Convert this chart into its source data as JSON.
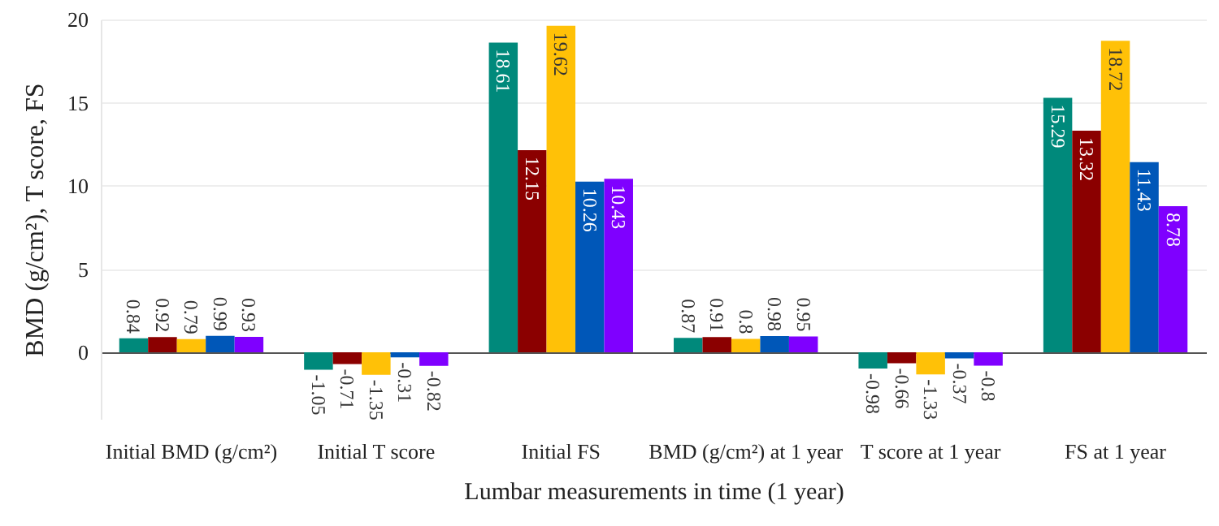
{
  "chart_data": {
    "type": "bar",
    "xlabel": "Lumbar measurements in time (1 year)",
    "ylabel": "BMD (g/cm²), T score, FS",
    "categories": [
      "Initial BMD (g/cm²)",
      "Initial T score",
      "Initial FS",
      "BMD (g/cm²) at 1 year",
      "T score at 1 year",
      "FS at 1 year"
    ],
    "series": [
      {
        "color": "#00897b",
        "values": [
          0.84,
          -1.05,
          18.61,
          0.87,
          -0.98,
          15.29
        ]
      },
      {
        "color": "#8b0000",
        "values": [
          0.92,
          -0.71,
          12.15,
          0.91,
          -0.66,
          13.32
        ]
      },
      {
        "color": "#ffc107",
        "values": [
          0.79,
          -1.35,
          19.62,
          0.8,
          -1.33,
          18.72
        ]
      },
      {
        "color": "#0057b8",
        "values": [
          0.99,
          -0.31,
          10.26,
          0.98,
          -0.37,
          11.43
        ]
      },
      {
        "color": "#7f00ff",
        "values": [
          0.93,
          -0.82,
          10.43,
          0.95,
          -0.8,
          8.78
        ]
      }
    ],
    "ylim": [
      -4,
      20
    ],
    "yticks": [
      0,
      5,
      10,
      15,
      20
    ],
    "grid": "y",
    "data_labels": true
  }
}
